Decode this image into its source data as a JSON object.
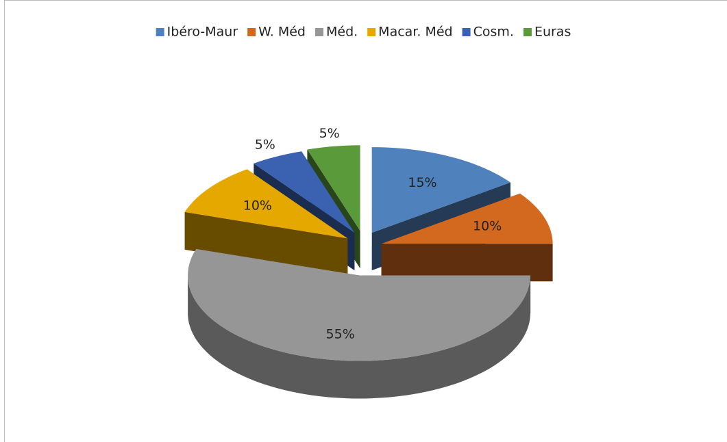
{
  "chart_data": {
    "type": "pie3d",
    "categories": [
      "Ibéro-Maur",
      "W. Méd",
      "Méd.",
      "Macar. Méd",
      "Cosm.",
      "Euras"
    ],
    "values": [
      15,
      10,
      55,
      10,
      5,
      5
    ],
    "value_labels": [
      "15%",
      "10%",
      "55%",
      "10%",
      "5%",
      "5%"
    ],
    "colors": [
      "#4f81bd",
      "#d2691e",
      "#969696",
      "#e5a800",
      "#3a62b0",
      "#5b9a3a"
    ],
    "legend": "top"
  }
}
